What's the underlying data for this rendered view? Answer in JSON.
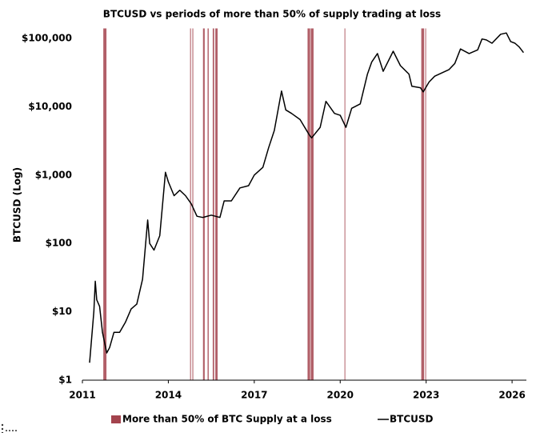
{
  "chart_data": {
    "type": "line",
    "title": "BTCUSD vs periods of more than 50% of supply trading at loss",
    "y_label": "BTCUSD (Log)",
    "log_y": true,
    "xlim": [
      2011,
      2026.5
    ],
    "xticks": [
      2011,
      2014,
      2017,
      2020,
      2023,
      2026
    ],
    "ylim": [
      1,
      140000
    ],
    "yticks": [
      {
        "value": 1,
        "label": "$1"
      },
      {
        "value": 10,
        "label": "$10"
      },
      {
        "value": 100,
        "label": "$100"
      },
      {
        "value": 1000,
        "label": "$1,000"
      },
      {
        "value": 10000,
        "label": "$10,000"
      },
      {
        "value": 100000,
        "label": "$100,000"
      }
    ],
    "grid": false,
    "legend": "bottom",
    "bands": {
      "name": "More than 50% of BTC Supply at a loss",
      "color": "#a3434d",
      "periods": [
        [
          2011.73,
          2011.84
        ],
        [
          2014.76,
          2014.79
        ],
        [
          2014.84,
          2014.87
        ],
        [
          2015.21,
          2015.27
        ],
        [
          2015.37,
          2015.41
        ],
        [
          2015.55,
          2015.6
        ],
        [
          2015.64,
          2015.72
        ],
        [
          2018.86,
          2018.95
        ],
        [
          2018.97,
          2019.07
        ],
        [
          2020.15,
          2020.17
        ],
        [
          2022.83,
          2022.93
        ],
        [
          2022.97,
          2022.99
        ]
      ]
    },
    "series": [
      {
        "name": "BTCUSD",
        "color": "#000000",
        "x": [
          2011.25,
          2011.4,
          2011.45,
          2011.5,
          2011.6,
          2011.7,
          2011.85,
          2011.95,
          2012.1,
          2012.3,
          2012.5,
          2012.7,
          2012.9,
          2013.1,
          2013.28,
          2013.35,
          2013.5,
          2013.7,
          2013.9,
          2014.0,
          2014.2,
          2014.4,
          2014.6,
          2014.8,
          2015.0,
          2015.2,
          2015.5,
          2015.8,
          2015.95,
          2016.2,
          2016.5,
          2016.8,
          2017.0,
          2017.3,
          2017.5,
          2017.7,
          2017.95,
          2018.1,
          2018.3,
          2018.6,
          2018.9,
          2019.0,
          2019.3,
          2019.5,
          2019.8,
          2020.0,
          2020.2,
          2020.4,
          2020.7,
          2020.95,
          2021.1,
          2021.3,
          2021.5,
          2021.85,
          2022.1,
          2022.4,
          2022.5,
          2022.8,
          2022.9,
          2023.1,
          2023.3,
          2023.8,
          2024.0,
          2024.2,
          2024.5,
          2024.8,
          2024.95,
          2025.1,
          2025.3,
          2025.6,
          2025.8,
          2025.95,
          2026.1,
          2026.25,
          2026.4
        ],
        "values": [
          1.8,
          10,
          28,
          15,
          12,
          5,
          2.5,
          3,
          5,
          5,
          7,
          11,
          13,
          30,
          220,
          100,
          80,
          130,
          1100,
          800,
          500,
          600,
          500,
          380,
          250,
          240,
          260,
          240,
          420,
          420,
          650,
          700,
          1000,
          1300,
          2500,
          4500,
          17000,
          9000,
          8000,
          6500,
          4000,
          3500,
          5000,
          12000,
          8000,
          7500,
          5000,
          9500,
          11000,
          30000,
          45000,
          60000,
          33000,
          65000,
          40000,
          30000,
          20000,
          19000,
          16500,
          23000,
          28000,
          35000,
          43000,
          70000,
          60000,
          68000,
          98000,
          95000,
          85000,
          115000,
          120000,
          90000,
          85000,
          75000,
          62000
        ]
      }
    ]
  }
}
